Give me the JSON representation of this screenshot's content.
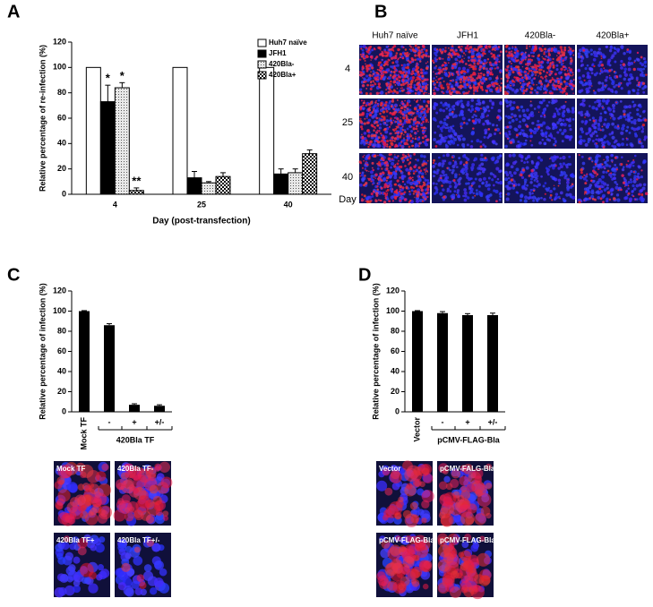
{
  "panel_labels": [
    "A",
    "B",
    "C",
    "D"
  ],
  "chart_data": [
    {
      "type": "bar",
      "categories": [
        "4",
        "25",
        "40"
      ],
      "series": [
        {
          "name": "Huh7 naïve",
          "color": "#ffffff",
          "pattern": "solid",
          "values": [
            100,
            100,
            100
          ],
          "errors": [
            0,
            0,
            0
          ]
        },
        {
          "name": "JFH1",
          "color": "#000000",
          "pattern": "solid",
          "values": [
            73,
            13,
            16
          ],
          "errors": [
            13,
            5,
            4
          ]
        },
        {
          "name": "420Bla-",
          "color": "#bfbfbf",
          "pattern": "dots",
          "values": [
            84,
            9,
            17
          ],
          "errors": [
            4,
            1,
            3
          ]
        },
        {
          "name": "420Bla+",
          "color": "#000000",
          "pattern": "checker",
          "values": [
            3,
            14,
            32
          ],
          "errors": [
            2,
            3,
            3
          ]
        }
      ],
      "annotations": [
        {
          "text": "*",
          "series": "JFH1",
          "category": "4"
        },
        {
          "text": "*",
          "series": "420Bla-",
          "category": "4"
        },
        {
          "text": "**",
          "series": "420Bla+",
          "category": "4"
        }
      ],
      "ylabel": "Relative percentage of re-infection (%)",
      "xlabel": "Day (post-transfection)",
      "ylim": [
        0,
        120
      ],
      "yticks": [
        0,
        20,
        40,
        60,
        80,
        100,
        120
      ],
      "legend": "upper right"
    },
    {
      "type": "bar",
      "categories": [
        "Mock TF",
        "-",
        "+",
        "+/-"
      ],
      "group_label": "420Bla TF",
      "values": [
        100,
        86,
        7,
        6
      ],
      "errors": [
        0.5,
        1.5,
        1,
        1
      ],
      "color": "#000000",
      "ylabel": "Relative percentage of infection (%)",
      "ylim": [
        0,
        120
      ],
      "yticks": [
        0,
        20,
        40,
        60,
        80,
        100,
        120
      ]
    },
    {
      "type": "bar",
      "categories": [
        "Vector",
        "-",
        "+",
        "+/-"
      ],
      "group_label": "pCMV-FLAG-Bla",
      "values": [
        100,
        98,
        96,
        96
      ],
      "errors": [
        0.5,
        1.5,
        1.5,
        2
      ],
      "color": "#000000",
      "ylabel": "Relative percentage of infection (%)",
      "ylim": [
        0,
        120
      ],
      "yticks": [
        0,
        20,
        40,
        60,
        80,
        100,
        120
      ]
    }
  ],
  "micrographs": {
    "columns": [
      "Huh7 naïve",
      "JFH1",
      "420Bla-",
      "420Bla+"
    ],
    "rows": [
      "4",
      "25",
      "40"
    ],
    "row_axis_label": "Day"
  },
  "panel_c_images": [
    "Mock TF",
    "420Bla TF-",
    "420Bla TF+",
    "420Bla TF+/-"
  ],
  "panel_d_images": [
    "Vector",
    "pCMV-FALG-Bla-",
    "pCMV-FLAG-Bla+",
    "pCMV-FLAG-Bla+/-"
  ]
}
